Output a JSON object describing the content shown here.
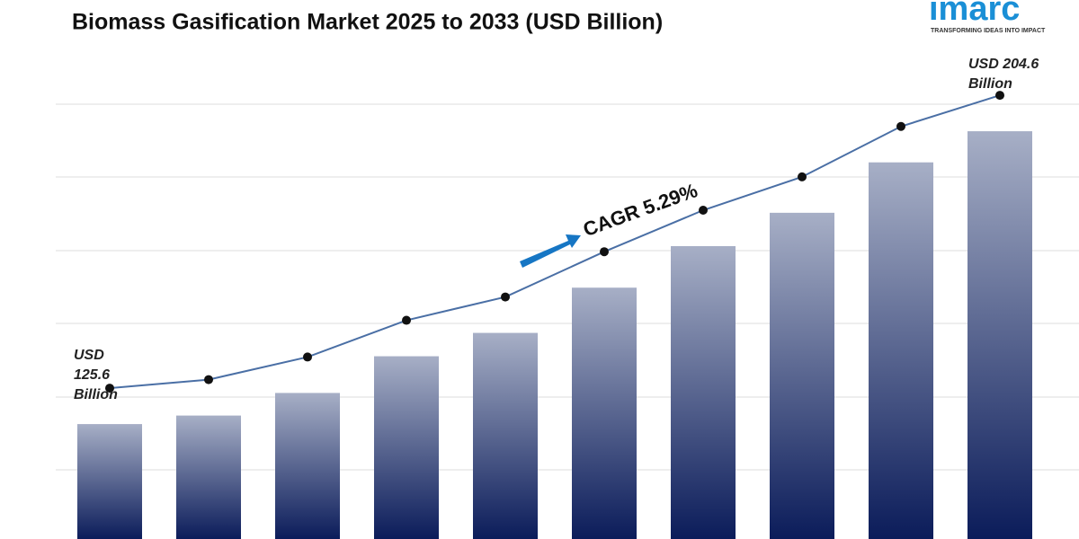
{
  "chart_data": {
    "type": "bar",
    "title": "Biomass Gasification Market 2025 to 2033 (USD Billion)",
    "categories": [
      null,
      null,
      null,
      null,
      null,
      null,
      null,
      null,
      null,
      null
    ],
    "values": [
      125.6,
      127.9,
      134.0,
      143.9,
      150.2,
      162.4,
      173.6,
      182.6,
      196.2,
      204.6
    ],
    "ylim": [
      94.6,
      240
    ],
    "line_color": "#4a6fa5",
    "start_label": [
      "USD",
      "125.6",
      "Billion"
    ],
    "end_label": [
      "USD 204.6",
      "Billion"
    ],
    "cagr": "CAGR  5.29%"
  },
  "logo": {
    "name": "imarc",
    "tagline": "TRANSFORMING IDEAS INTO IMPACT"
  }
}
